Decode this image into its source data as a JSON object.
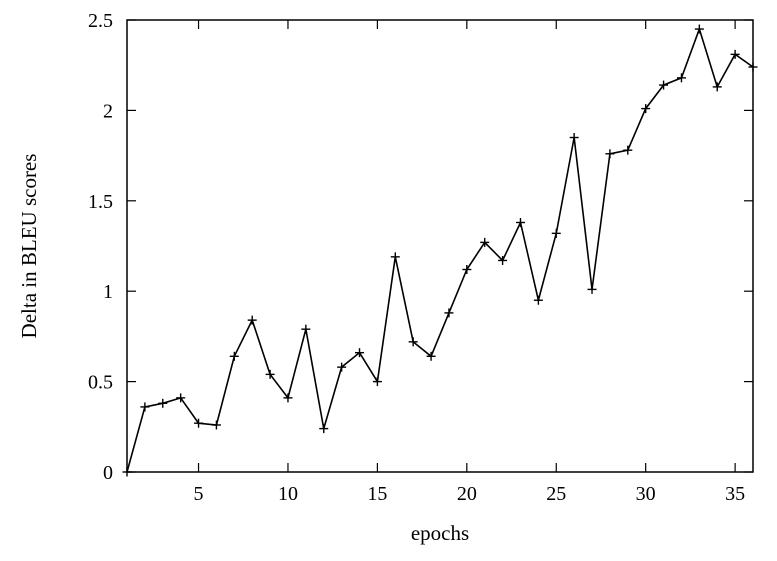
{
  "chart_data": {
    "type": "line",
    "title": "",
    "xlabel": "epochs",
    "ylabel": "Delta in BLEU scores",
    "xlim": [
      1,
      36
    ],
    "ylim": [
      0,
      2.5
    ],
    "xticks": [
      5,
      10,
      15,
      20,
      25,
      30,
      35
    ],
    "xtick_labels": [
      "5",
      "10",
      "15",
      "20",
      "25",
      "30",
      "35"
    ],
    "yticks": [
      0,
      0.5,
      1,
      1.5,
      2,
      2.5
    ],
    "ytick_labels": [
      "0",
      "0.5",
      "1",
      "1.5",
      "2",
      "2.5"
    ],
    "grid": false,
    "legend": "none",
    "line_color": "#000000",
    "marker": "plus",
    "series": [
      {
        "x": [
          1,
          2,
          3,
          4,
          5,
          6,
          7,
          8,
          9,
          10,
          11,
          12,
          13,
          14,
          15,
          16,
          17,
          18,
          19,
          20,
          21,
          22,
          23,
          24,
          25,
          26,
          27,
          28,
          29,
          30,
          31,
          32,
          33,
          34,
          35,
          36
        ],
        "values": [
          0,
          0.36,
          0.38,
          0.41,
          0.27,
          0.26,
          0.64,
          0.84,
          0.54,
          0.41,
          0.79,
          0.24,
          0.58,
          0.66,
          0.5,
          1.19,
          0.72,
          0.64,
          0.88,
          1.12,
          1.27,
          1.17,
          1.38,
          0.95,
          1.32,
          1.85,
          1.01,
          1.76,
          1.78,
          2.01,
          2.14,
          2.18,
          2.45,
          2.13,
          2.31,
          2.24
        ]
      }
    ]
  }
}
